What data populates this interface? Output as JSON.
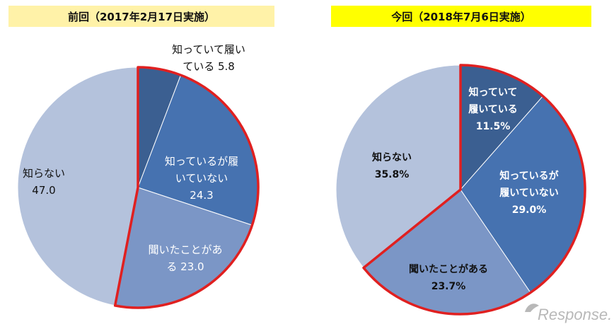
{
  "chart_data": [
    {
      "type": "pie",
      "title": "前回（2017年2月17日実施）",
      "categories": [
        "知っていて履いている",
        "知っているが履いていない",
        "聞いたことがある",
        "知らない"
      ],
      "values": [
        5.8,
        24.3,
        23.0,
        47.0
      ],
      "labels": [
        [
          "知っていて履い",
          "ている 5.8"
        ],
        [
          "知っているが履",
          "いていない",
          "24.3"
        ],
        [
          "聞いたことがあ",
          "る 23.0"
        ],
        [
          "知らない",
          "47.0"
        ]
      ],
      "colors": [
        "#3b5f91",
        "#4672b0",
        "#7b96c6",
        "#b4c2dc"
      ],
      "highlight_color": "#e02020"
    },
    {
      "type": "pie",
      "title": "今回（2018年7月6日実施）",
      "categories": [
        "知っていて履いている",
        "知っているが履いていない",
        "聞いたことがある",
        "知らない"
      ],
      "values": [
        11.5,
        29.0,
        23.7,
        35.8
      ],
      "labels": [
        [
          "知っていて",
          "履いている",
          "11.5%"
        ],
        [
          "知っているが",
          "履いていない",
          "29.0%"
        ],
        [
          "聞いたことがある",
          "23.7%"
        ],
        [
          "知らない",
          "35.8%"
        ]
      ],
      "colors": [
        "#3b5f91",
        "#4672b0",
        "#7b96c6",
        "#b4c2dc"
      ],
      "highlight_color": "#e02020"
    }
  ],
  "watermark": "Response."
}
